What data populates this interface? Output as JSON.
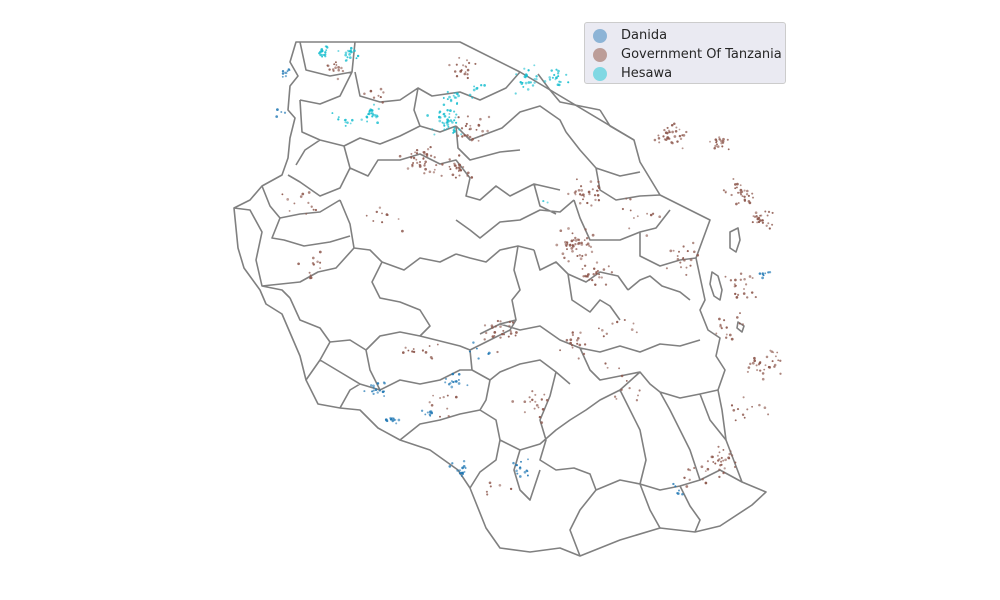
{
  "chart_data": {
    "type": "scatter",
    "subtype": "geographic-point-map",
    "title": "",
    "xlabel": "",
    "ylabel": "",
    "axes_visible": false,
    "grid": false,
    "legend_position": "top-right",
    "boundary_color": "#808080",
    "series": [
      {
        "name": "Danida",
        "color": "#1f77b4",
        "legend_color": "#8db4d6",
        "approx_points": 140,
        "clusters": [
          {
            "lon": 30.45,
            "lat": -1.65,
            "n": 10,
            "spread": 0.12
          },
          {
            "lon": 30.35,
            "lat": -2.5,
            "n": 4,
            "spread": 0.15
          },
          {
            "lon": 39.05,
            "lat": -6.05,
            "n": 8,
            "spread": 0.1
          },
          {
            "lon": 33.45,
            "lat": -8.35,
            "n": 14,
            "spread": 0.2
          },
          {
            "lon": 33.9,
            "lat": -7.6,
            "n": 6,
            "spread": 0.25
          },
          {
            "lon": 32.05,
            "lat": -8.55,
            "n": 16,
            "spread": 0.22
          },
          {
            "lon": 32.3,
            "lat": -9.2,
            "n": 14,
            "spread": 0.15
          },
          {
            "lon": 33.0,
            "lat": -9.05,
            "n": 8,
            "spread": 0.1
          },
          {
            "lon": 33.6,
            "lat": -10.3,
            "n": 14,
            "spread": 0.2
          },
          {
            "lon": 34.65,
            "lat": -10.3,
            "n": 14,
            "spread": 0.25
          },
          {
            "lon": 37.5,
            "lat": -10.75,
            "n": 6,
            "spread": 0.25
          }
        ]
      },
      {
        "name": "Government Of Tanzania",
        "color": "#8c564b",
        "legend_color": "#bc9d98",
        "approx_points": 820,
        "clusters": [
          {
            "lon": 31.3,
            "lat": -1.6,
            "n": 14,
            "spread": 0.2
          },
          {
            "lon": 32.1,
            "lat": -2.15,
            "n": 8,
            "spread": 0.25
          },
          {
            "lon": 33.6,
            "lat": -1.6,
            "n": 18,
            "spread": 0.25
          },
          {
            "lon": 33.8,
            "lat": -2.9,
            "n": 25,
            "spread": 0.3
          },
          {
            "lon": 32.85,
            "lat": -3.55,
            "n": 40,
            "spread": 0.3
          },
          {
            "lon": 33.5,
            "lat": -3.75,
            "n": 25,
            "spread": 0.25
          },
          {
            "lon": 30.7,
            "lat": -4.5,
            "n": 12,
            "spread": 0.35
          },
          {
            "lon": 32.2,
            "lat": -4.8,
            "n": 10,
            "spread": 0.4
          },
          {
            "lon": 31.0,
            "lat": -5.9,
            "n": 12,
            "spread": 0.3
          },
          {
            "lon": 37.35,
            "lat": -3.0,
            "n": 35,
            "spread": 0.3
          },
          {
            "lon": 38.25,
            "lat": -3.2,
            "n": 18,
            "spread": 0.2
          },
          {
            "lon": 38.6,
            "lat": -4.3,
            "n": 30,
            "spread": 0.3
          },
          {
            "lon": 39.0,
            "lat": -4.85,
            "n": 25,
            "spread": 0.2
          },
          {
            "lon": 35.8,
            "lat": -4.3,
            "n": 30,
            "spread": 0.35
          },
          {
            "lon": 35.6,
            "lat": -5.45,
            "n": 45,
            "spread": 0.35
          },
          {
            "lon": 36.0,
            "lat": -6.05,
            "n": 25,
            "spread": 0.3
          },
          {
            "lon": 36.8,
            "lat": -4.8,
            "n": 12,
            "spread": 0.4
          },
          {
            "lon": 37.6,
            "lat": -5.7,
            "n": 20,
            "spread": 0.35
          },
          {
            "lon": 38.6,
            "lat": -6.3,
            "n": 20,
            "spread": 0.3
          },
          {
            "lon": 38.4,
            "lat": -7.2,
            "n": 15,
            "spread": 0.3
          },
          {
            "lon": 34.3,
            "lat": -7.3,
            "n": 25,
            "spread": 0.35
          },
          {
            "lon": 35.7,
            "lat": -7.5,
            "n": 18,
            "spread": 0.35
          },
          {
            "lon": 36.4,
            "lat": -7.2,
            "n": 10,
            "spread": 0.3
          },
          {
            "lon": 39.05,
            "lat": -8.0,
            "n": 30,
            "spread": 0.3
          },
          {
            "lon": 38.7,
            "lat": -9.0,
            "n": 12,
            "spread": 0.35
          },
          {
            "lon": 38.3,
            "lat": -10.1,
            "n": 30,
            "spread": 0.3
          },
          {
            "lon": 37.8,
            "lat": -10.45,
            "n": 10,
            "spread": 0.3
          },
          {
            "lon": 34.9,
            "lat": -8.9,
            "n": 18,
            "spread": 0.4
          },
          {
            "lon": 33.3,
            "lat": -8.9,
            "n": 10,
            "spread": 0.35
          },
          {
            "lon": 32.8,
            "lat": -7.8,
            "n": 12,
            "spread": 0.4
          },
          {
            "lon": 34.2,
            "lat": -10.6,
            "n": 6,
            "spread": 0.3
          },
          {
            "lon": 36.5,
            "lat": -8.5,
            "n": 12,
            "spread": 0.5
          }
        ]
      },
      {
        "name": "Hesawa",
        "color": "#17becf",
        "legend_color": "#80d8e3",
        "approx_points": 230,
        "clusters": [
          {
            "lon": 31.1,
            "lat": -1.2,
            "n": 18,
            "spread": 0.12
          },
          {
            "lon": 31.55,
            "lat": -1.25,
            "n": 22,
            "spread": 0.15
          },
          {
            "lon": 32.0,
            "lat": -2.55,
            "n": 25,
            "spread": 0.2
          },
          {
            "lon": 31.4,
            "lat": -2.7,
            "n": 10,
            "spread": 0.25
          },
          {
            "lon": 33.3,
            "lat": -2.7,
            "n": 40,
            "spread": 0.3
          },
          {
            "lon": 33.45,
            "lat": -2.2,
            "n": 15,
            "spread": 0.2
          },
          {
            "lon": 34.8,
            "lat": -1.85,
            "n": 25,
            "spread": 0.3
          },
          {
            "lon": 35.3,
            "lat": -1.8,
            "n": 18,
            "spread": 0.2
          },
          {
            "lon": 33.9,
            "lat": -2.05,
            "n": 8,
            "spread": 0.2
          },
          {
            "lon": 35.1,
            "lat": -4.45,
            "n": 2,
            "spread": 0.05
          }
        ]
      }
    ]
  },
  "legend": {
    "entries": [
      {
        "label": "Danida",
        "color": "#8db4d6"
      },
      {
        "label": "Government Of Tanzania",
        "color": "#bc9d98"
      },
      {
        "label": "Hesawa",
        "color": "#80d8e3"
      }
    ]
  }
}
